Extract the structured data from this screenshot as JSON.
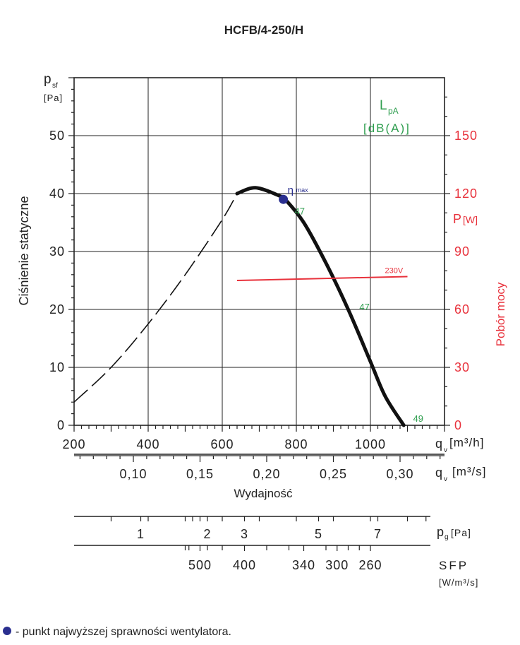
{
  "chart_data": {
    "type": "line",
    "title": "HCFB/4-250/H",
    "ylabel": "Ciśnienie statyczne",
    "y_unit_symbol": "p",
    "y_unit_sub": "sf",
    "y_unit": "[Pa]",
    "ylim": [
      0,
      60
    ],
    "yticks": [
      "0",
      "10",
      "20",
      "30",
      "40",
      "50"
    ],
    "xlim": [
      200,
      1200
    ],
    "xticks": [
      "200",
      "400",
      "600",
      "800",
      "1000"
    ],
    "xlabel": "Wydajność",
    "x_unit_symbol": "q",
    "x_unit_sub": "v",
    "x_unit": "[m³/h]",
    "x2_unit": "[m³/s]",
    "x2ticks": [
      {
        "label": "0,10",
        "value": 0.1
      },
      {
        "label": "0,15",
        "value": 0.15
      },
      {
        "label": "0,20",
        "value": 0.2
      },
      {
        "label": "0,25",
        "value": 0.25
      },
      {
        "label": "0,30",
        "value": 0.3
      }
    ],
    "y2label": "Pobór mocy",
    "y2_unit": "P",
    "y2_unit_bracket": "[W]",
    "y2lim": [
      0,
      180
    ],
    "y2ticks": [
      "0",
      "30",
      "60",
      "90",
      "120",
      "150"
    ],
    "lpa_label": "L",
    "lpa_sub": "pA",
    "lpa_unit": "[dB(A)]",
    "series": [
      {
        "name": "pressure_dashed",
        "style": "dashed",
        "x": [
          200,
          300,
          400,
          500,
          600,
          640
        ],
        "y": [
          4,
          10,
          17.5,
          26,
          35.5,
          40
        ]
      },
      {
        "name": "pressure",
        "style": "solid",
        "x": [
          640,
          690,
          755,
          770,
          820,
          880,
          940,
          1000,
          1040,
          1090
        ],
        "y": [
          40,
          41,
          39.6,
          39,
          35,
          28,
          20,
          11,
          5,
          0
        ]
      },
      {
        "name": "power_230V",
        "label": "230V",
        "color": "#e8323c",
        "x": [
          640,
          1100
        ],
        "y": [
          75,
          77
        ]
      }
    ],
    "eta_max": {
      "x": 765,
      "y": 39,
      "label": "η",
      "sub": "max"
    },
    "noise_labels": [
      {
        "text": "47",
        "x": 780,
        "y": 37
      },
      {
        "text": "47",
        "x": 955,
        "y": 20.5
      },
      {
        "text": "49",
        "x": 1100,
        "y": 1.2
      }
    ],
    "pg_label": "p",
    "pg_sub": "g",
    "pg_unit": "[Pa]",
    "pg_ticks": [
      {
        "label": "1",
        "x": 380
      },
      {
        "label": "2",
        "x": 560
      },
      {
        "label": "3",
        "x": 660
      },
      {
        "label": "5",
        "x": 860
      },
      {
        "label": "7",
        "x": 1020
      }
    ],
    "pg_minor": [
      300,
      400,
      500,
      520,
      540,
      600,
      700,
      800,
      900,
      1000,
      1100,
      1150
    ],
    "sfp_label": "SFP",
    "sfp_unit": "[W/m³/s]",
    "sfp_ticks": [
      {
        "label": "500",
        "x": 540
      },
      {
        "label": "400",
        "x": 660
      },
      {
        "label": "340",
        "x": 820
      },
      {
        "label": "300",
        "x": 910
      },
      {
        "label": "260",
        "x": 1000
      }
    ],
    "sfp_minor": [
      500,
      510,
      560,
      600,
      720,
      780,
      880,
      940,
      970
    ]
  },
  "footnote": {
    "bullet_color": "#2a2f8f",
    "text": "- punkt najwyższej sprawności wentylatora."
  }
}
